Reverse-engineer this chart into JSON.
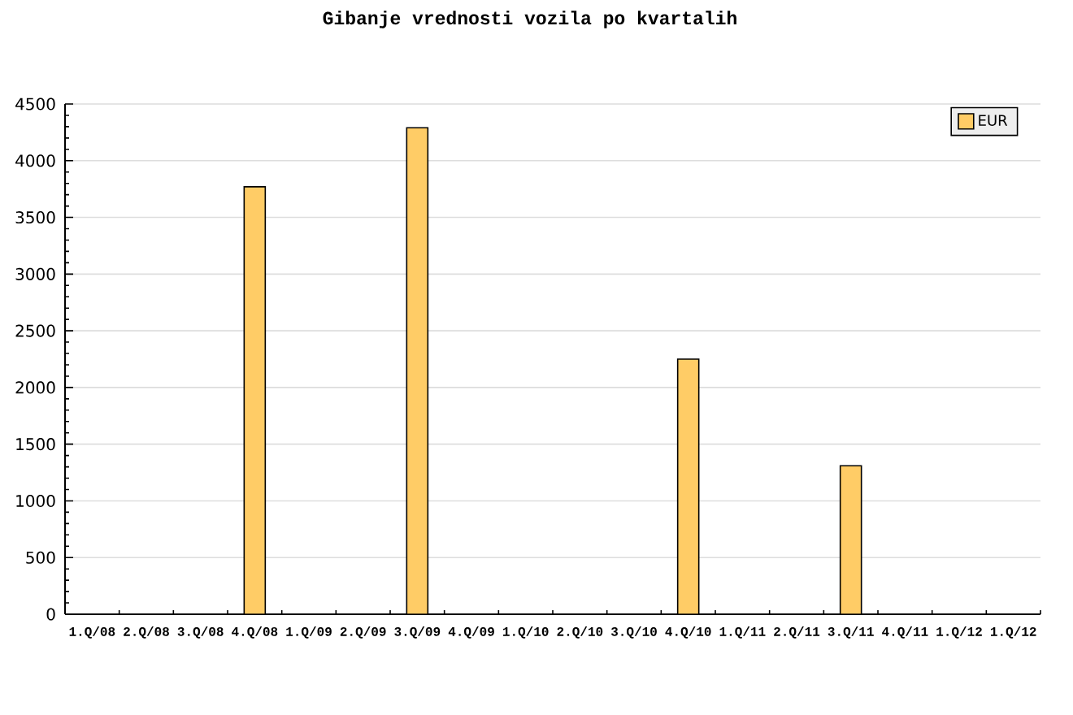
{
  "chart_data": {
    "type": "bar",
    "title": "Gibanje vrednosti vozila po kvartalih",
    "categories": [
      "1.Q/08",
      "2.Q/08",
      "3.Q/08",
      "4.Q/08",
      "1.Q/09",
      "2.Q/09",
      "3.Q/09",
      "4.Q/09",
      "1.Q/10",
      "2.Q/10",
      "3.Q/10",
      "4.Q/10",
      "1.Q/11",
      "2.Q/11",
      "3.Q/11",
      "4.Q/11",
      "1.Q/12",
      "1.Q/12"
    ],
    "series": [
      {
        "name": "EUR",
        "color": "#ffcc66",
        "values": [
          null,
          null,
          null,
          3770,
          null,
          null,
          4290,
          null,
          null,
          null,
          null,
          2250,
          null,
          null,
          1310,
          null,
          null,
          null
        ]
      }
    ],
    "ylim": [
      0,
      4500
    ],
    "yticks": [
      0,
      500,
      1000,
      1500,
      2000,
      2500,
      3000,
      3500,
      4000,
      4500
    ],
    "grid": "y",
    "legend": "top right"
  }
}
